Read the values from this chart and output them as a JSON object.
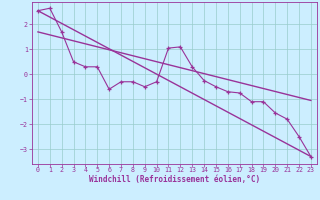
{
  "xlabel": "Windchill (Refroidissement éolien,°C)",
  "bg_color": "#cceeff",
  "grid_color": "#99cccc",
  "line_color": "#993399",
  "spine_color": "#993399",
  "xlim": [
    -0.5,
    23.5
  ],
  "ylim": [
    -3.6,
    2.9
  ],
  "xticks": [
    0,
    1,
    2,
    3,
    4,
    5,
    6,
    7,
    8,
    9,
    10,
    11,
    12,
    13,
    14,
    15,
    16,
    17,
    18,
    19,
    20,
    21,
    22,
    23
  ],
  "yticks": [
    -3,
    -2,
    -1,
    0,
    1,
    2
  ],
  "zigzag_x": [
    0,
    1,
    2,
    3,
    4,
    5,
    6,
    7,
    8,
    9,
    10,
    11,
    12,
    13,
    14,
    15,
    16,
    17,
    18,
    19,
    20,
    21,
    22,
    23
  ],
  "zigzag_y": [
    2.55,
    2.65,
    1.7,
    0.5,
    0.3,
    0.3,
    -0.6,
    -0.3,
    -0.3,
    -0.5,
    -0.3,
    1.05,
    1.1,
    0.3,
    -0.25,
    -0.5,
    -0.7,
    -0.75,
    -1.1,
    -1.1,
    -1.55,
    -1.8,
    -2.5,
    -3.3
  ],
  "trend1_x": [
    0,
    23
  ],
  "trend1_y": [
    2.55,
    -3.3
  ],
  "trend2_x": [
    0,
    23
  ],
  "trend2_y": [
    1.7,
    -1.05
  ]
}
